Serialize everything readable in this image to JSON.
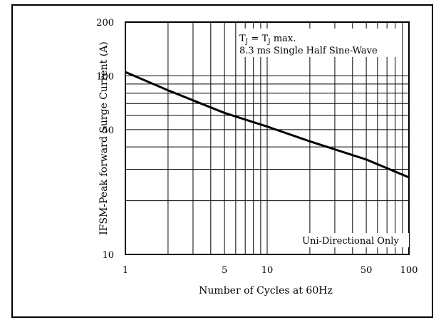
{
  "chart_data": {
    "type": "line",
    "xscale": "log",
    "yscale": "log",
    "xlim": [
      1,
      100
    ],
    "ylim": [
      10,
      200
    ],
    "xlabel": "Number of Cycles at 60Hz",
    "ylabel": "IFSM-Peak forward Surge Current (A)",
    "x_tick_labels": [
      "1",
      "5",
      "10",
      "50",
      "100"
    ],
    "x_tick_values": [
      1,
      5,
      10,
      50,
      100
    ],
    "y_tick_labels": [
      "10",
      "50",
      "100",
      "200"
    ],
    "y_tick_values": [
      10,
      50,
      100,
      200
    ],
    "grid": true,
    "series": [
      {
        "x": [
          1,
          2,
          5,
          10,
          20,
          50,
          100
        ],
        "y": [
          105,
          83,
          62,
          52,
          43,
          34,
          27
        ]
      }
    ],
    "annotations": {
      "tj_main": "T",
      "tj_sub": "J",
      "tj_mid": " = T",
      "tj_sub2": "J",
      "tj_end": " max.",
      "waveform": "8.3 ms Single Half Sine-Wave",
      "note": "Uni-Directional Only"
    }
  }
}
